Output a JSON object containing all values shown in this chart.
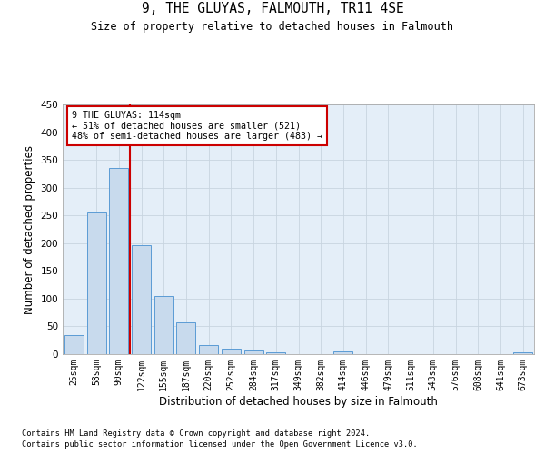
{
  "title": "9, THE GLUYAS, FALMOUTH, TR11 4SE",
  "subtitle": "Size of property relative to detached houses in Falmouth",
  "xlabel": "Distribution of detached houses by size in Falmouth",
  "ylabel": "Number of detached properties",
  "categories": [
    "25sqm",
    "58sqm",
    "90sqm",
    "122sqm",
    "155sqm",
    "187sqm",
    "220sqm",
    "252sqm",
    "284sqm",
    "317sqm",
    "349sqm",
    "382sqm",
    "414sqm",
    "446sqm",
    "479sqm",
    "511sqm",
    "543sqm",
    "576sqm",
    "608sqm",
    "641sqm",
    "673sqm"
  ],
  "values": [
    35,
    256,
    336,
    197,
    104,
    57,
    17,
    10,
    6,
    4,
    0,
    0,
    5,
    0,
    0,
    0,
    0,
    0,
    0,
    0,
    3
  ],
  "bar_color": "#c8daed",
  "bar_edge_color": "#5b9bd5",
  "vline_color": "#cc0000",
  "vline_x": 2.5,
  "annotation_line1": "9 THE GLUYAS: 114sqm",
  "annotation_line2": "← 51% of detached houses are smaller (521)",
  "annotation_line3": "48% of semi-detached houses are larger (483) →",
  "annotation_box_edgecolor": "#cc0000",
  "annotation_bg": "#ffffff",
  "ylim": [
    0,
    450
  ],
  "yticks": [
    0,
    50,
    100,
    150,
    200,
    250,
    300,
    350,
    400,
    450
  ],
  "grid_color": "#c8d4e0",
  "plot_bg_color": "#e4eef8",
  "footer_line1": "Contains HM Land Registry data © Crown copyright and database right 2024.",
  "footer_line2": "Contains public sector information licensed under the Open Government Licence v3.0."
}
